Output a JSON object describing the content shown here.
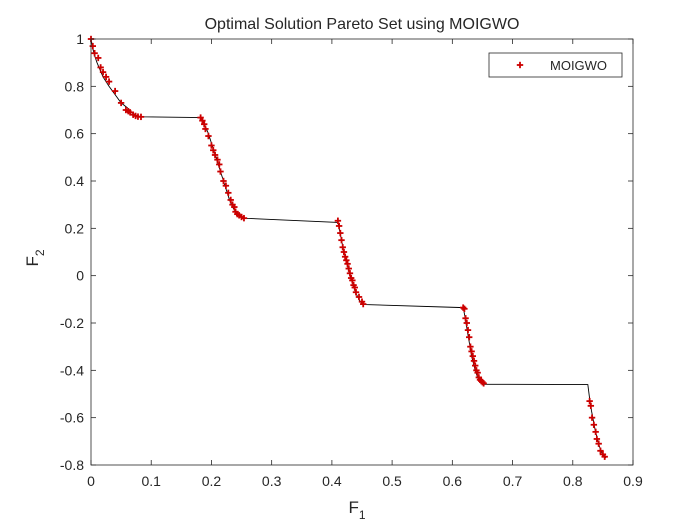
{
  "chart_data": {
    "type": "scatter",
    "title": "Optimal Solution Pareto Set using MOIGWO",
    "xlabel": "F",
    "xlabel_sub": "1",
    "ylabel": "F",
    "ylabel_sub": "2",
    "xlim": [
      0,
      0.9
    ],
    "ylim": [
      -0.8,
      1.0
    ],
    "xticks": [
      0,
      0.1,
      0.2,
      0.3,
      0.4,
      0.5,
      0.6,
      0.7,
      0.8,
      0.9
    ],
    "xtick_labels": [
      "0",
      "0.1",
      "0.2",
      "0.3",
      "0.4",
      "0.5",
      "0.6",
      "0.7",
      "0.8",
      "0.9"
    ],
    "yticks": [
      -0.8,
      -0.6,
      -0.4,
      -0.2,
      0,
      0.2,
      0.4,
      0.6,
      0.8,
      1
    ],
    "ytick_labels": [
      "-0.8",
      "-0.6",
      "-0.4",
      "-0.2",
      "0",
      "0.2",
      "0.4",
      "0.6",
      "0.8",
      "1"
    ],
    "grid": false,
    "legend": {
      "position": "top-right",
      "entries": [
        "MOIGWO"
      ]
    },
    "colors": {
      "marker": "#cc0000",
      "front_line": "#000000",
      "axes": "#262626"
    },
    "front_line": {
      "x": [
        0,
        0.003,
        0.006,
        0.01,
        0.015,
        0.02,
        0.025,
        0.03,
        0.04,
        0.05,
        0.06,
        0.065,
        0.07,
        0.075,
        0.08,
        0.085,
        0.182,
        0.186,
        0.19,
        0.195,
        0.2,
        0.205,
        0.21,
        0.215,
        0.22,
        0.225,
        0.23,
        0.235,
        0.24,
        0.245,
        0.25,
        0.255,
        0.26,
        0.41,
        0.412,
        0.414,
        0.416,
        0.418,
        0.42,
        0.422,
        0.424,
        0.426,
        0.428,
        0.43,
        0.432,
        0.434,
        0.436,
        0.438,
        0.44,
        0.443,
        0.446,
        0.449,
        0.452,
        0.455,
        0.618,
        0.62,
        0.622,
        0.624,
        0.626,
        0.628,
        0.63,
        0.632,
        0.634,
        0.636,
        0.638,
        0.64,
        0.642,
        0.644,
        0.646,
        0.648,
        0.65,
        0.652,
        0.654,
        0.825,
        0.828,
        0.831,
        0.834,
        0.837,
        0.84,
        0.843,
        0.846,
        0.85,
        0.855
      ],
      "y": [
        1.0,
        0.96,
        0.93,
        0.9,
        0.87,
        0.84,
        0.82,
        0.8,
        0.765,
        0.73,
        0.71,
        0.695,
        0.685,
        0.678,
        0.673,
        0.671,
        0.668,
        0.65,
        0.63,
        0.6,
        0.56,
        0.52,
        0.48,
        0.44,
        0.4,
        0.36,
        0.32,
        0.29,
        0.27,
        0.255,
        0.247,
        0.243,
        0.242,
        0.225,
        0.2,
        0.175,
        0.15,
        0.125,
        0.1,
        0.08,
        0.06,
        0.04,
        0.02,
        0.0,
        -0.015,
        -0.03,
        -0.045,
        -0.06,
        -0.075,
        -0.09,
        -0.105,
        -0.115,
        -0.12,
        -0.122,
        -0.135,
        -0.16,
        -0.19,
        -0.22,
        -0.25,
        -0.28,
        -0.31,
        -0.34,
        -0.36,
        -0.38,
        -0.4,
        -0.415,
        -0.43,
        -0.44,
        -0.448,
        -0.453,
        -0.456,
        -0.458,
        -0.459,
        -0.46,
        -0.52,
        -0.57,
        -0.61,
        -0.65,
        -0.68,
        -0.71,
        -0.735,
        -0.755,
        -0.77
      ]
    },
    "series": [
      {
        "name": "MOIGWO",
        "marker": "plus",
        "x": [
          0,
          0.003,
          0.006,
          0.012,
          0.016,
          0.02,
          0.025,
          0.03,
          0.04,
          0.05,
          0.058,
          0.062,
          0.065,
          0.07,
          0.074,
          0.078,
          0.083,
          0.182,
          0.185,
          0.188,
          0.19,
          0.195,
          0.2,
          0.203,
          0.206,
          0.21,
          0.213,
          0.215,
          0.22,
          0.224,
          0.228,
          0.232,
          0.235,
          0.238,
          0.24,
          0.243,
          0.246,
          0.25,
          0.254,
          0.41,
          0.412,
          0.414,
          0.416,
          0.418,
          0.42,
          0.422,
          0.424,
          0.426,
          0.428,
          0.43,
          0.432,
          0.434,
          0.436,
          0.438,
          0.44,
          0.445,
          0.45,
          0.452,
          0.618,
          0.62,
          0.622,
          0.624,
          0.626,
          0.628,
          0.63,
          0.632,
          0.634,
          0.636,
          0.638,
          0.64,
          0.642,
          0.644,
          0.646,
          0.648,
          0.65,
          0.652,
          0.828,
          0.83,
          0.832,
          0.835,
          0.838,
          0.84,
          0.843,
          0.846,
          0.85,
          0.853
        ],
        "y": [
          1.0,
          0.97,
          0.94,
          0.92,
          0.88,
          0.86,
          0.84,
          0.82,
          0.78,
          0.73,
          0.7,
          0.695,
          0.69,
          0.68,
          0.675,
          0.672,
          0.671,
          0.668,
          0.655,
          0.64,
          0.62,
          0.59,
          0.55,
          0.53,
          0.51,
          0.49,
          0.47,
          0.44,
          0.4,
          0.38,
          0.35,
          0.32,
          0.3,
          0.29,
          0.27,
          0.26,
          0.255,
          0.248,
          0.243,
          0.232,
          0.21,
          0.18,
          0.15,
          0.12,
          0.1,
          0.08,
          0.065,
          0.05,
          0.03,
          0.01,
          -0.01,
          -0.02,
          -0.04,
          -0.05,
          -0.07,
          -0.09,
          -0.11,
          -0.12,
          -0.135,
          -0.14,
          -0.18,
          -0.2,
          -0.23,
          -0.26,
          -0.3,
          -0.32,
          -0.34,
          -0.36,
          -0.38,
          -0.4,
          -0.41,
          -0.43,
          -0.44,
          -0.445,
          -0.45,
          -0.455,
          -0.53,
          -0.55,
          -0.6,
          -0.63,
          -0.66,
          -0.69,
          -0.71,
          -0.74,
          -0.755,
          -0.765
        ]
      }
    ]
  }
}
